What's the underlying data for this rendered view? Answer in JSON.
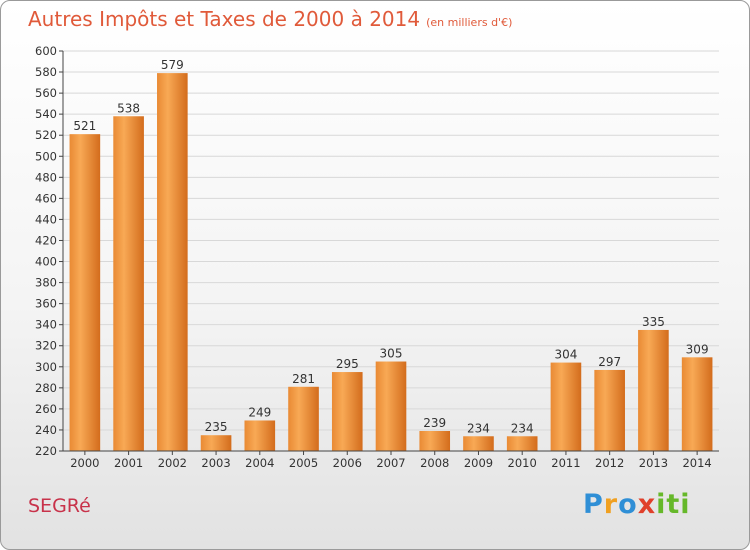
{
  "header": {
    "title": "Autres Impôts et Taxes de 2000 à 2014",
    "unit": "(en milliers d'€)"
  },
  "footer": {
    "place": "SEGRé",
    "logo": [
      "P",
      "r",
      "o",
      "x",
      "i",
      "ti"
    ]
  },
  "colors": {
    "title": "#e05a3a",
    "bar_light": "#f6a24e",
    "bar_dark": "#d9701e",
    "grid": "#d8d8d8",
    "place": "#c8324a"
  },
  "chart_data": {
    "type": "bar",
    "categories": [
      "2000",
      "2001",
      "2002",
      "2003",
      "2004",
      "2005",
      "2006",
      "2007",
      "2008",
      "2009",
      "2010",
      "2011",
      "2012",
      "2013",
      "2014"
    ],
    "values": [
      521,
      538,
      579,
      235,
      249,
      281,
      295,
      305,
      239,
      234,
      234,
      304,
      297,
      335,
      309
    ],
    "title": "Autres Impôts et Taxes de 2000 à 2014",
    "xlabel": "",
    "ylabel": "",
    "ylim": [
      220,
      600
    ],
    "ytick_step": 20,
    "grid": true,
    "data_labels": true,
    "legend": "none"
  }
}
